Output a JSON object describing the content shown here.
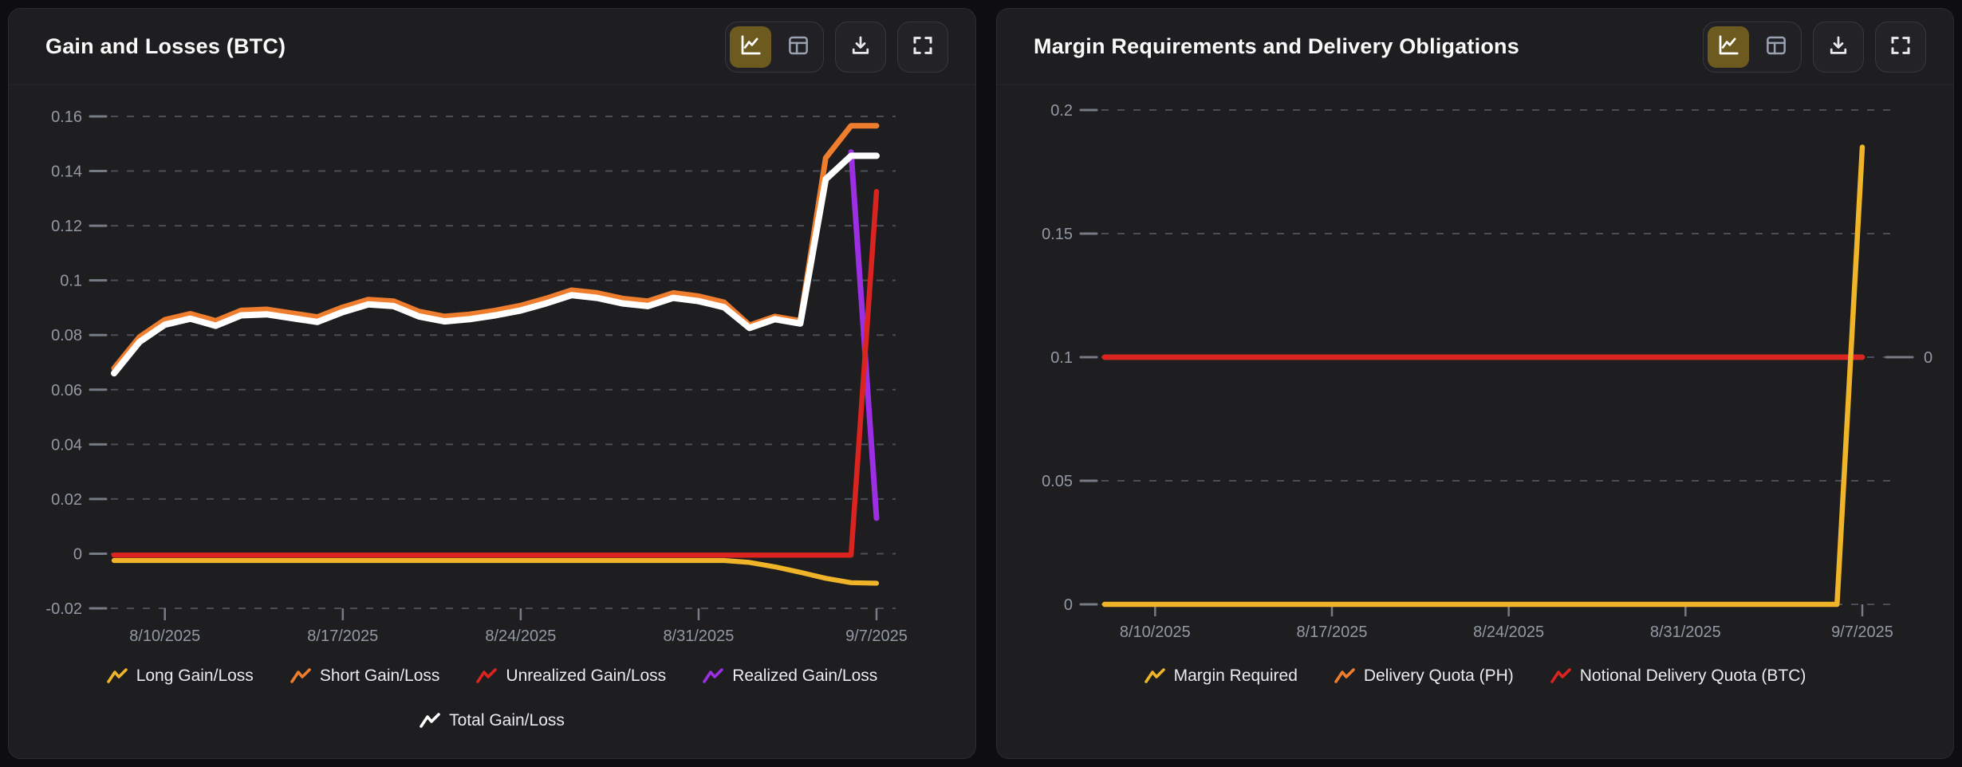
{
  "panels": [
    {
      "title": "Gain and Losses (BTC)",
      "toolbar": {
        "views": [
          "line-chart",
          "table"
        ],
        "active_view": "line-chart",
        "actions": [
          "download",
          "fullscreen"
        ]
      }
    },
    {
      "title": "Margin Requirements and Delivery Obligations",
      "toolbar": {
        "views": [
          "line-chart",
          "table"
        ],
        "active_view": "line-chart",
        "actions": [
          "download",
          "fullscreen"
        ]
      }
    }
  ],
  "colors": {
    "yellow": "#f0b429",
    "orange": "#ee7d2e",
    "red": "#db241f",
    "purple": "#9c2fe3",
    "white": "#ffffff",
    "axis_text": "#9299a4",
    "grid": "#494e58",
    "tick": "#757a84",
    "active_button_bg": "#6d5a1e"
  },
  "chart_data": [
    {
      "type": "line",
      "title": "Gain and Losses (BTC)",
      "xlabel": "",
      "ylabel": "",
      "grid": true,
      "legend_position": "bottom",
      "ylim": [
        -0.02,
        0.16
      ],
      "yticks": [
        0.16,
        0.14,
        0.12,
        0.1,
        0.08,
        0.06,
        0.04,
        0.02,
        0,
        -0.02
      ],
      "dates": [
        "8/8/2025",
        "8/9/2025",
        "8/10/2025",
        "8/11/2025",
        "8/12/2025",
        "8/13/2025",
        "8/14/2025",
        "8/15/2025",
        "8/16/2025",
        "8/17/2025",
        "8/18/2025",
        "8/19/2025",
        "8/20/2025",
        "8/21/2025",
        "8/22/2025",
        "8/23/2025",
        "8/24/2025",
        "8/25/2025",
        "8/26/2025",
        "8/27/2025",
        "8/28/2025",
        "8/29/2025",
        "8/30/2025",
        "8/31/2025",
        "9/1/2025",
        "9/2/2025",
        "9/3/2025",
        "9/4/2025",
        "9/5/2025",
        "9/6/2025",
        "9/7/2025"
      ],
      "xticks": [
        2,
        9,
        16,
        23,
        30
      ],
      "draw_order": [
        0,
        1,
        3,
        2,
        4
      ],
      "legend_rows": [
        [
          0,
          1,
          2,
          3
        ],
        [
          4
        ]
      ],
      "series": [
        {
          "name": "Long Gain/Loss",
          "color": "#f0b429",
          "width": 6.2,
          "values": [
            -0.0025,
            -0.0025,
            -0.0025,
            -0.0025,
            -0.0025,
            -0.0025,
            -0.0025,
            -0.0025,
            -0.0025,
            -0.0025,
            -0.0025,
            -0.0025,
            -0.0025,
            -0.0025,
            -0.0025,
            -0.0025,
            -0.0025,
            -0.0025,
            -0.0025,
            -0.0025,
            -0.0025,
            -0.0025,
            -0.0025,
            -0.0025,
            -0.0025,
            -0.0032,
            -0.0048,
            -0.0068,
            -0.009,
            -0.0106,
            -0.0108
          ]
        },
        {
          "name": "Short Gain/Loss",
          "color": "#ee7d2e",
          "width": 7,
          "values": [
            0.0678,
            0.0793,
            0.0856,
            0.0878,
            0.0852,
            0.089,
            0.0894,
            0.088,
            0.0866,
            0.0902,
            0.093,
            0.0924,
            0.0886,
            0.0868,
            0.0876,
            0.089,
            0.0908,
            0.0934,
            0.0964,
            0.0954,
            0.0934,
            0.0924,
            0.0954,
            0.0942,
            0.092,
            0.0836,
            0.0868,
            0.0852,
            0.1448,
            0.1566,
            0.1566
          ]
        },
        {
          "name": "Unrealized Gain/Loss",
          "color": "#db241f",
          "width": 6.5,
          "values": [
            -0.0005,
            -0.0005,
            -0.0005,
            -0.0005,
            -0.0005,
            -0.0005,
            -0.0005,
            -0.0005,
            -0.0005,
            -0.0005,
            -0.0005,
            -0.0005,
            -0.0005,
            -0.0005,
            -0.0005,
            -0.0005,
            -0.0005,
            -0.0005,
            -0.0005,
            -0.0005,
            -0.0005,
            -0.0005,
            -0.0005,
            -0.0005,
            -0.0005,
            -0.0005,
            -0.0005,
            -0.0005,
            -0.0005,
            -0.0005,
            0.1325
          ]
        },
        {
          "name": "Realized Gain/Loss",
          "color": "#9c2fe3",
          "width": 7,
          "values": [
            null,
            null,
            null,
            null,
            null,
            null,
            null,
            null,
            null,
            null,
            null,
            null,
            null,
            null,
            null,
            null,
            null,
            null,
            null,
            null,
            null,
            null,
            null,
            null,
            null,
            null,
            null,
            null,
            null,
            0.147,
            0.013
          ]
        },
        {
          "name": "Total Gain/Loss",
          "color": "#ffffff",
          "width": 8,
          "values": [
            0.066,
            0.0775,
            0.0838,
            0.086,
            0.0834,
            0.0872,
            0.0876,
            0.0862,
            0.0848,
            0.0884,
            0.0912,
            0.0906,
            0.0868,
            0.085,
            0.0858,
            0.0872,
            0.089,
            0.0916,
            0.0946,
            0.0936,
            0.0916,
            0.0906,
            0.0936,
            0.0924,
            0.0902,
            0.0826,
            0.0858,
            0.0842,
            0.137,
            0.1456,
            0.1456
          ]
        }
      ]
    },
    {
      "type": "line",
      "title": "Margin Requirements and Delivery Obligations",
      "xlabel": "",
      "ylabel": "",
      "grid": true,
      "legend_position": "bottom",
      "ylim": [
        0,
        0.2
      ],
      "yticks": [
        0.2,
        0.15,
        0.1,
        0.05,
        0
      ],
      "right_ylim": [
        -1,
        1
      ],
      "right_axis": {
        "label": "0",
        "value": 0
      },
      "dates": [
        "8/8/2025",
        "8/9/2025",
        "8/10/2025",
        "8/11/2025",
        "8/12/2025",
        "8/13/2025",
        "8/14/2025",
        "8/15/2025",
        "8/16/2025",
        "8/17/2025",
        "8/18/2025",
        "8/19/2025",
        "8/20/2025",
        "8/21/2025",
        "8/22/2025",
        "8/23/2025",
        "8/24/2025",
        "8/25/2025",
        "8/26/2025",
        "8/27/2025",
        "8/28/2025",
        "8/29/2025",
        "8/30/2025",
        "8/31/2025",
        "9/1/2025",
        "9/2/2025",
        "9/3/2025",
        "9/4/2025",
        "9/5/2025",
        "9/6/2025",
        "9/7/2025"
      ],
      "xticks": [
        2,
        9,
        16,
        23,
        30
      ],
      "draw_order": [
        1,
        2,
        0
      ],
      "legend_rows": [
        [
          0,
          1,
          2
        ]
      ],
      "series": [
        {
          "name": "Margin Required",
          "color": "#f0b429",
          "width": 6.5,
          "values": [
            0,
            0,
            0,
            0,
            0,
            0,
            0,
            0,
            0,
            0,
            0,
            0,
            0,
            0,
            0,
            0,
            0,
            0,
            0,
            0,
            0,
            0,
            0,
            0,
            0,
            0,
            0,
            0,
            0,
            0,
            0.185
          ]
        },
        {
          "name": "Delivery Quota (PH)",
          "color": "#ee7d2e",
          "width": 6.5,
          "axis": "right",
          "values": [
            0,
            0,
            0,
            0,
            0,
            0,
            0,
            0,
            0,
            0,
            0,
            0,
            0,
            0,
            0,
            0,
            0,
            0,
            0,
            0,
            0,
            0,
            0,
            0,
            0,
            0,
            0,
            0,
            0,
            0,
            0
          ]
        },
        {
          "name": "Notional Delivery Quota (BTC)",
          "color": "#db241f",
          "width": 6.5,
          "axis": "right",
          "values": [
            0,
            0,
            0,
            0,
            0,
            0,
            0,
            0,
            0,
            0,
            0,
            0,
            0,
            0,
            0,
            0,
            0,
            0,
            0,
            0,
            0,
            0,
            0,
            0,
            0,
            0,
            0,
            0,
            0,
            0,
            0
          ]
        }
      ]
    }
  ]
}
